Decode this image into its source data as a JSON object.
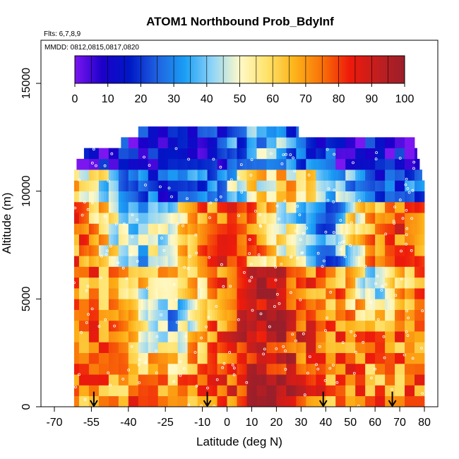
{
  "chart_data": {
    "type": "heatmap",
    "title": "ATOM1 Northbound Prob_BdyInf",
    "subtitle": "Flts: 6,7,8,9",
    "annotation": "MMDD: 0812,0815,0817,0820",
    "xlabel": "Latitude (deg N)",
    "ylabel": "Altitude (m)",
    "xlim": [
      -70,
      80
    ],
    "ylim": [
      0,
      17000
    ],
    "x_ticks": [
      -70,
      -55,
      -40,
      -25,
      -10,
      0,
      10,
      20,
      30,
      40,
      50,
      60,
      70,
      80
    ],
    "x_tick_labels": [
      "-70",
      "-55",
      "-40",
      "-25",
      "-10",
      "0",
      "10",
      "20",
      "30",
      "40",
      "50",
      "60",
      "70",
      "80"
    ],
    "y_ticks": [
      0,
      5000,
      10000,
      15000
    ],
    "y_tick_labels": [
      "0",
      "5000",
      "10000",
      "15000"
    ],
    "colorbar": {
      "range": [
        0,
        100
      ],
      "tick_labels": [
        "0",
        "10",
        "20",
        "30",
        "40",
        "50",
        "60",
        "70",
        "80",
        "90",
        "100"
      ],
      "colors": [
        "#7b16f0",
        "#1c00c9",
        "#0018c6",
        "#2062e0",
        "#1a9ef5",
        "#8fd4f7",
        "#fff9c8",
        "#fee26a",
        "#fdb319",
        "#f97108",
        "#ee1a0b",
        "#c21f1f",
        "#9a1f2a"
      ]
    },
    "altitude_levels": [
      0,
      500,
      1000,
      1500,
      2000,
      2500,
      3000,
      3500,
      4000,
      4500,
      5000,
      5500,
      6000,
      6500,
      7000,
      7500,
      8000,
      8500,
      9000,
      9500,
      10000,
      10500,
      11000,
      11500,
      12000,
      12500
    ],
    "profile_latitudes": [
      -54,
      -8,
      39,
      67
    ],
    "grid": false,
    "legend": "top"
  },
  "colors": {
    "axis": "#000000",
    "background": "#ffffff"
  }
}
